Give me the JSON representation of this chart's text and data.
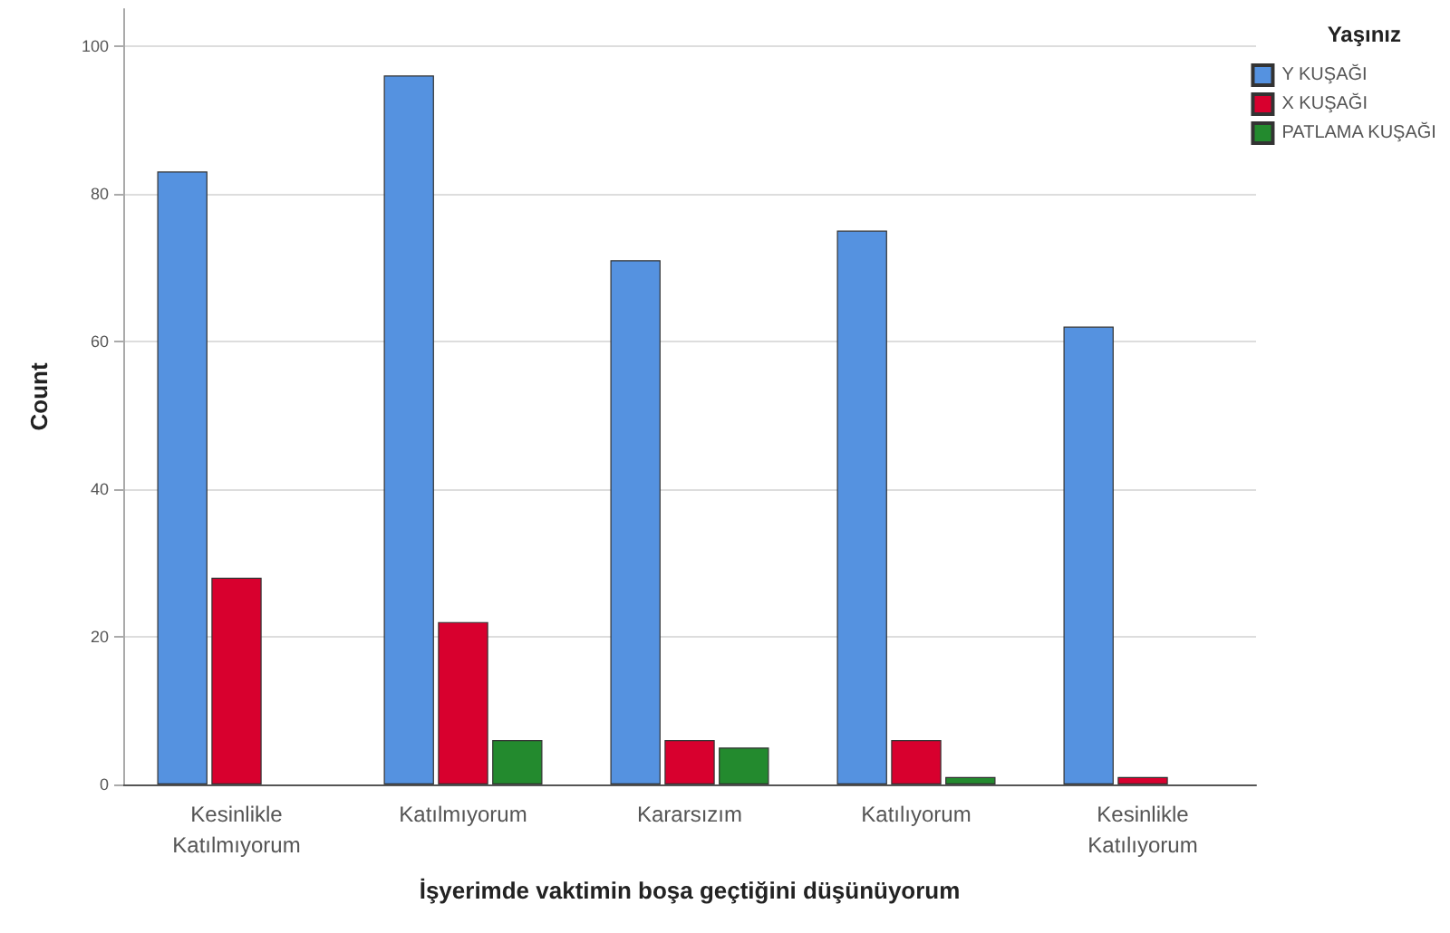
{
  "chart_data": {
    "type": "bar",
    "xlabel": "İşyerimde vaktimin boşa geçtiğini düşünüyorum",
    "ylabel": "Count",
    "legend_title": "Yaşınız",
    "categories": [
      "Kesinlikle\nKatılmıyorum",
      "Katılmıyorum",
      "Kararsızım",
      "Katılıyorum",
      "Kesinlikle\nKatılıyorum"
    ],
    "series": [
      {
        "name": "Y KUŞAĞI",
        "color": "#5592e0",
        "values": [
          83,
          96,
          71,
          75,
          62
        ]
      },
      {
        "name": "X KUŞAĞI",
        "color": "#d8002e",
        "values": [
          28,
          22,
          6,
          6,
          1
        ]
      },
      {
        "name": "PATLAMA KUŞAĞI",
        "color": "#238a2e",
        "values": [
          0,
          6,
          5,
          1,
          0
        ]
      }
    ],
    "ylim": [
      0,
      105
    ],
    "yticks": [
      0,
      20,
      40,
      60,
      80,
      100
    ],
    "grid": "y",
    "legend": "top right"
  }
}
